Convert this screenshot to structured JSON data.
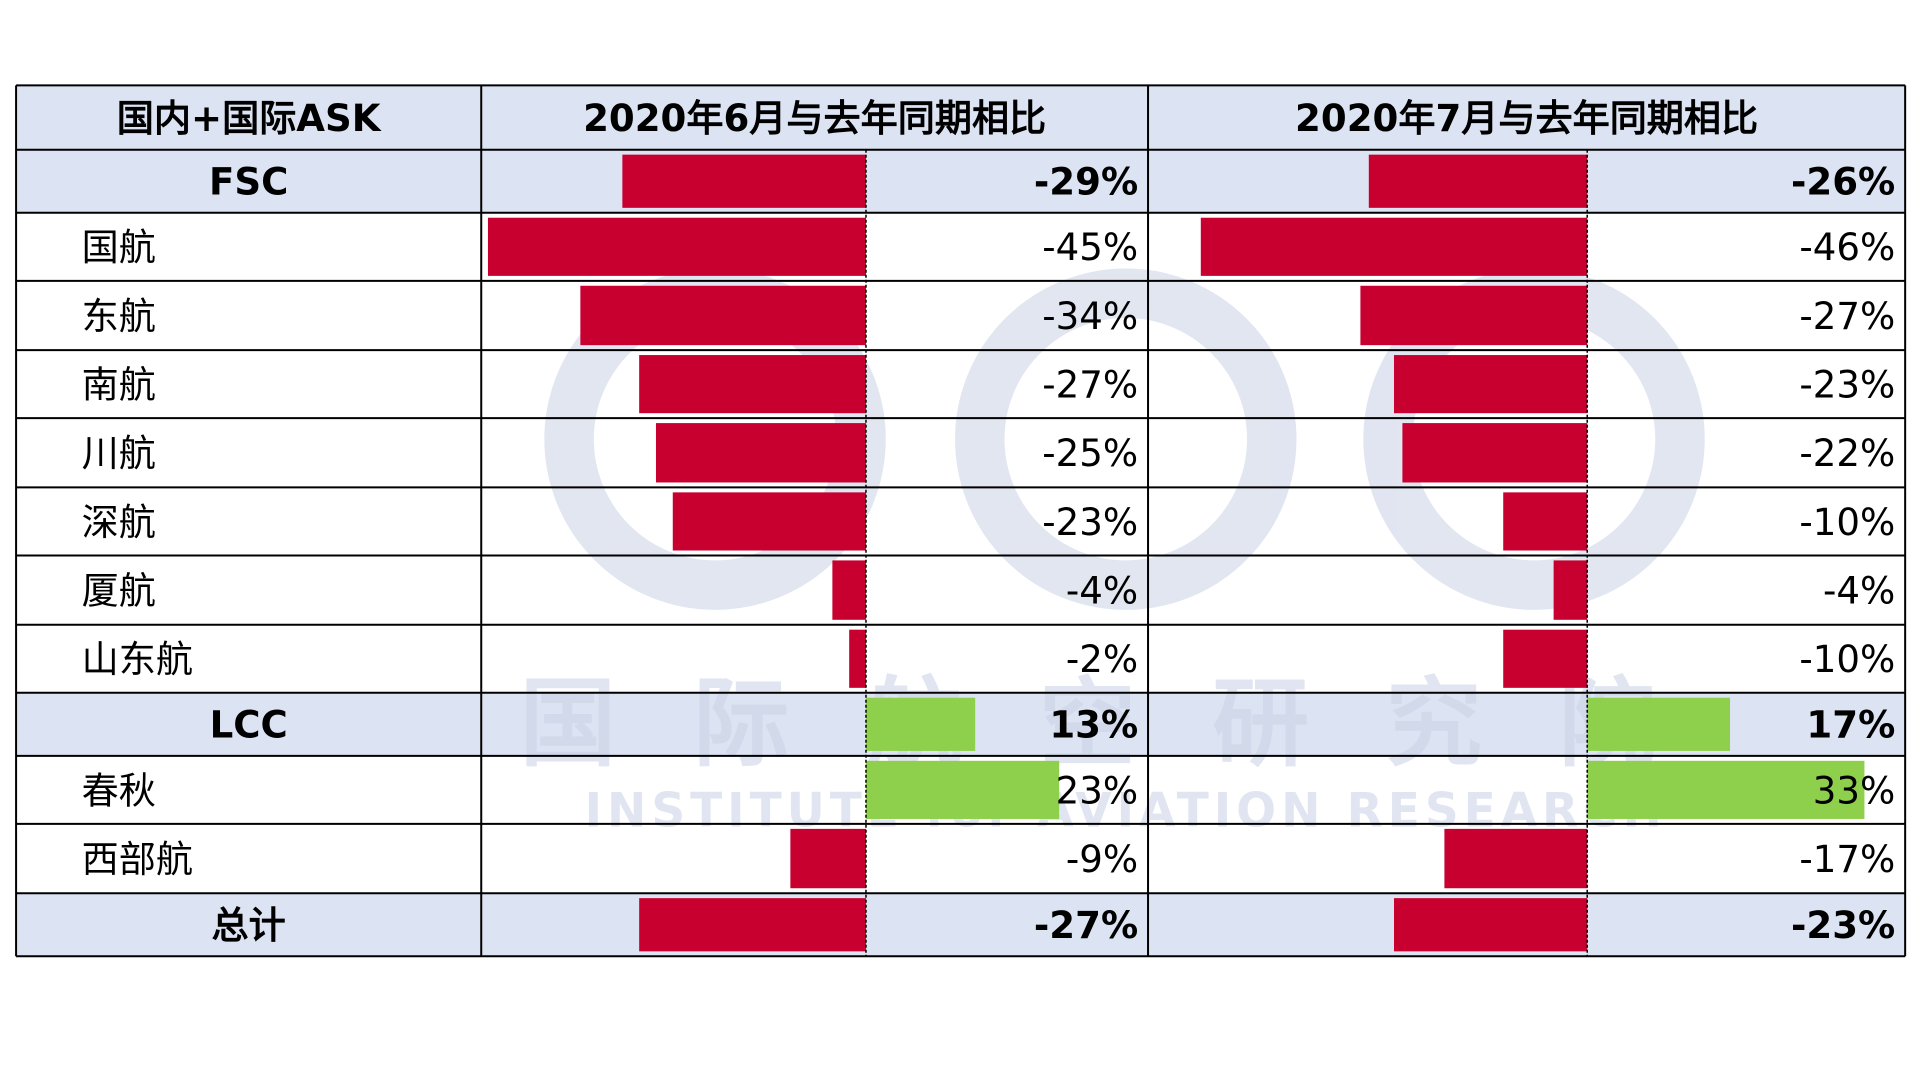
{
  "chart_data": {
    "type": "bar",
    "header": {
      "col1": "国内+国际ASK",
      "col2": "2020年6月与去年同期相比",
      "col3": "2020年7月与去年同期相比"
    },
    "rows": [
      {
        "label": "FSC",
        "group": true,
        "jun": -29,
        "jul": -26,
        "jun_label": "-29%",
        "jul_label": "-26%"
      },
      {
        "label": "国航",
        "group": false,
        "jun": -45,
        "jul": -46,
        "jun_label": "-45%",
        "jul_label": "-46%"
      },
      {
        "label": "东航",
        "group": false,
        "jun": -34,
        "jul": -27,
        "jun_label": "-34%",
        "jul_label": "-27%"
      },
      {
        "label": "南航",
        "group": false,
        "jun": -27,
        "jul": -23,
        "jun_label": "-27%",
        "jul_label": "-23%"
      },
      {
        "label": "川航",
        "group": false,
        "jun": -25,
        "jul": -22,
        "jun_label": "-25%",
        "jul_label": "-22%"
      },
      {
        "label": "深航",
        "group": false,
        "jun": -23,
        "jul": -10,
        "jun_label": "-23%",
        "jul_label": "-10%"
      },
      {
        "label": "厦航",
        "group": false,
        "jun": -4,
        "jul": -4,
        "jun_label": "-4%",
        "jul_label": "-4%"
      },
      {
        "label": "山东航",
        "group": false,
        "jun": -2,
        "jul": -10,
        "jun_label": "-2%",
        "jul_label": "-10%"
      },
      {
        "label": "LCC",
        "group": true,
        "jun": 13,
        "jul": 17,
        "jun_label": "13%",
        "jul_label": "17%"
      },
      {
        "label": "春秋",
        "group": false,
        "jun": 23,
        "jul": 33,
        "jun_label": "23%",
        "jul_label": "33%"
      },
      {
        "label": "西部航",
        "group": false,
        "jun": -9,
        "jul": -17,
        "jun_label": "-9%",
        "jul_label": "-17%"
      },
      {
        "label": "总计",
        "group": true,
        "jun": -27,
        "jul": -23,
        "jun_label": "-27%",
        "jul_label": "-23%"
      }
    ],
    "colors": {
      "negative": "#c8002f",
      "positive": "#8ed04b",
      "header_fill": "#dce3f2",
      "border": "#000000"
    },
    "watermark": {
      "cn": "国际航空研究院",
      "en": "INSTITUTE for AVIATION RESEARCH",
      "color": "#c9d1e6"
    }
  }
}
